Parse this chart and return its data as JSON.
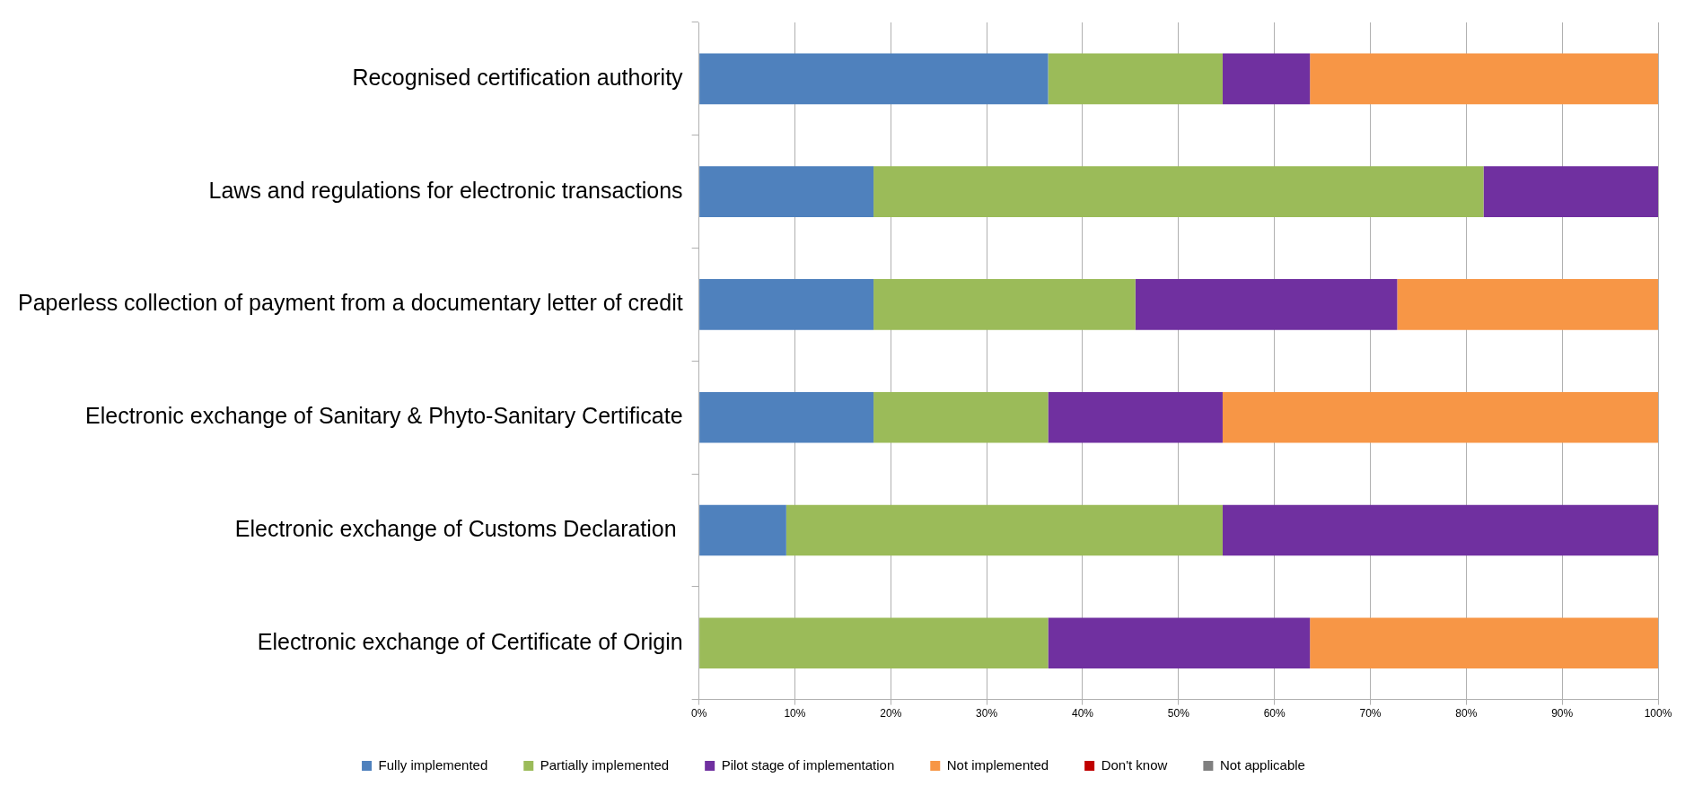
{
  "chart_data": {
    "type": "bar",
    "orientation": "horizontal",
    "stacked": true,
    "grid": "x",
    "legend": "bottom",
    "categories": [
      "Recognised certification authority",
      "Laws and regulations for electronic transactions",
      "Paperless collection of payment from a documentary letter of credit",
      "Electronic exchange of Sanitary & Phyto-Sanitary Certificate",
      "Electronic exchange of Customs Declaration ",
      "Electronic exchange of Certificate of Origin"
    ],
    "series": [
      {
        "name": "Fully implemented",
        "color": "#4f81bd",
        "values": [
          36.4,
          18.2,
          18.2,
          18.2,
          9.1,
          0
        ]
      },
      {
        "name": "Partially implemented",
        "color": "#9bbb59",
        "values": [
          18.2,
          63.6,
          27.3,
          18.2,
          45.5,
          36.4
        ]
      },
      {
        "name": "Pilot stage of implementation",
        "color": "#7030a0",
        "values": [
          9.1,
          18.2,
          27.3,
          18.2,
          45.4,
          27.3
        ]
      },
      {
        "name": "Not implemented",
        "color": "#f79646",
        "values": [
          36.3,
          0,
          27.2,
          45.4,
          0,
          36.3
        ]
      },
      {
        "name": "Don't know",
        "color": "#c00000",
        "values": [
          0,
          0,
          0,
          0,
          0,
          0
        ]
      },
      {
        "name": "Not applicable",
        "color": "#808080",
        "values": [
          0,
          0,
          0,
          0,
          0,
          0
        ]
      }
    ],
    "xlim": [
      0,
      100
    ],
    "xticks": [
      {
        "value": 0,
        "label": "0%"
      },
      {
        "value": 10,
        "label": "10%"
      },
      {
        "value": 20,
        "label": "20%"
      },
      {
        "value": 30,
        "label": "30%"
      },
      {
        "value": 40,
        "label": "40%"
      },
      {
        "value": 50,
        "label": "50%"
      },
      {
        "value": 60,
        "label": "60%"
      },
      {
        "value": 70,
        "label": "70%"
      },
      {
        "value": 80,
        "label": "80%"
      },
      {
        "value": 90,
        "label": "90%"
      },
      {
        "value": 100,
        "label": "100%"
      }
    ]
  }
}
